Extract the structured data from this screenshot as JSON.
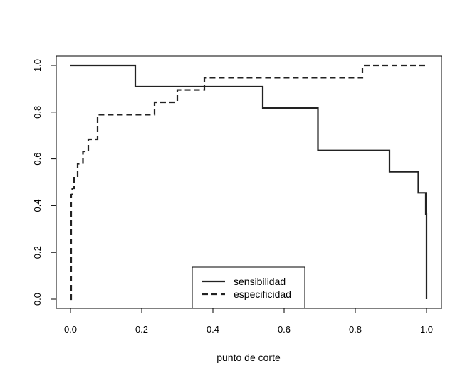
{
  "chart_data": {
    "type": "line",
    "title": "",
    "xlabel": "punto de corte",
    "ylabel": "",
    "xlim": [
      0,
      1
    ],
    "ylim": [
      0,
      1
    ],
    "grid": false,
    "legend_placement": "bottom-center",
    "x_ticks": [
      0.0,
      0.2,
      0.4,
      0.6,
      0.8,
      1.0
    ],
    "x_tick_labels": [
      "0.0",
      "0.2",
      "0.4",
      "0.6",
      "0.8",
      "1.0"
    ],
    "y_ticks": [
      0.0,
      0.2,
      0.4,
      0.6,
      0.8,
      1.0
    ],
    "y_tick_labels": [
      "0.0",
      "0.2",
      "0.4",
      "0.6",
      "0.8",
      "1.0"
    ],
    "series": [
      {
        "name": "sensibilidad",
        "style": "solid",
        "color": "#222222",
        "step": true,
        "x": [
          0.0,
          0.182,
          0.54,
          0.695,
          0.896,
          0.977,
          0.998,
          1.0
        ],
        "y": [
          1.0,
          0.909,
          0.818,
          0.636,
          0.545,
          0.455,
          0.364,
          0.0
        ]
      },
      {
        "name": "especificidad",
        "style": "dashed",
        "color": "#222222",
        "step": true,
        "x": [
          0.0,
          0.002,
          0.005,
          0.01,
          0.02,
          0.035,
          0.05,
          0.06,
          0.076,
          0.236,
          0.3,
          0.376,
          0.82,
          1.0
        ],
        "y": [
          0.0,
          0.447,
          0.474,
          0.526,
          0.579,
          0.632,
          0.684,
          0.684,
          0.789,
          0.842,
          0.895,
          0.947,
          1.0,
          1.0
        ]
      }
    ]
  }
}
